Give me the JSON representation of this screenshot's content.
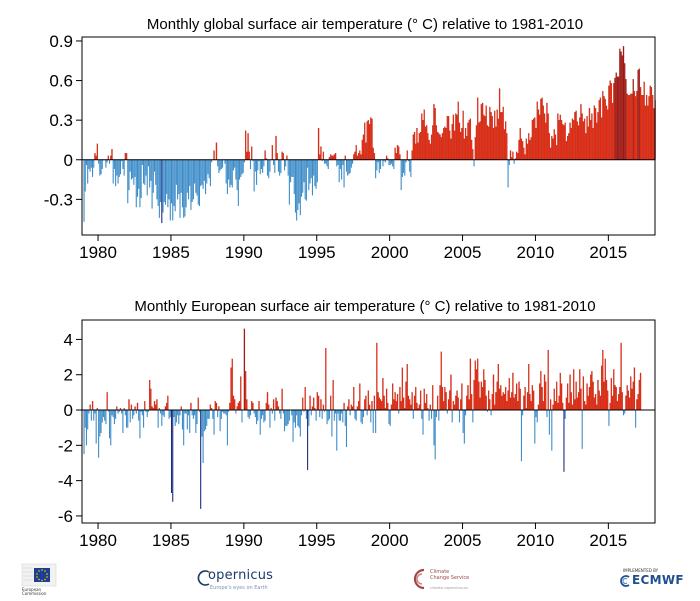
{
  "chart_data": [
    {
      "type": "bar",
      "title": "Monthly  global surface air temperature (° C) relative to 1981-2010",
      "xlabel": "",
      "ylabel": "",
      "xlim": [
        1978.9,
        2018.2
      ],
      "ylim": [
        -0.57,
        0.93
      ],
      "y_ticks": [
        0.9,
        0.6,
        0.3,
        0,
        -0.3
      ],
      "y_tick_labels": [
        "0.9",
        "0.6",
        "0.3",
        "0",
        "-0.3"
      ],
      "x_ticks": [
        1980,
        1985,
        1990,
        1995,
        2000,
        2005,
        2010,
        2015
      ],
      "x_tick_labels": [
        "1980",
        "1985",
        "1990",
        "1995",
        "2000",
        "2005",
        "2010",
        "2015"
      ],
      "grid": false,
      "legend": "none",
      "colors": {
        "positive": "#ee2a0c",
        "negative": "#3c8cc8",
        "extreme_negative": "#1b2d80",
        "extreme_positive": "#a51812"
      },
      "series": [
        {
          "start": "1979-01",
          "frequency": "monthly",
          "x_first_month": 1979.04,
          "values": [
            -0.47,
            -0.24,
            -0.04,
            -0.18,
            -0.07,
            -0.09,
            -0.06,
            -0.13,
            -0.06,
            0.05,
            0.03,
            0.12,
            -0.03,
            -0.12,
            -0.11,
            -0.07,
            0.0,
            0.0,
            -0.06,
            -0.02,
            0.03,
            -0.03,
            0.03,
            0.08,
            -0.18,
            -0.07,
            -0.2,
            -0.12,
            -0.18,
            -0.13,
            -0.11,
            -0.01,
            -0.07,
            -0.12,
            0.05,
            0.05,
            -0.33,
            -0.23,
            -0.09,
            -0.15,
            -0.14,
            -0.19,
            -0.13,
            -0.36,
            -0.28,
            -0.22,
            -0.36,
            -0.29,
            -0.04,
            -0.18,
            -0.19,
            -0.12,
            -0.27,
            -0.05,
            -0.21,
            -0.16,
            -0.37,
            -0.25,
            -0.09,
            -0.19,
            -0.3,
            -0.35,
            -0.44,
            -0.32,
            -0.48,
            -0.4,
            -0.32,
            -0.34,
            -0.26,
            -0.36,
            -0.3,
            -0.46,
            -0.33,
            -0.46,
            -0.35,
            -0.39,
            -0.19,
            -0.3,
            -0.26,
            -0.44,
            -0.25,
            -0.36,
            -0.44,
            -0.43,
            -0.36,
            -0.25,
            -0.3,
            -0.2,
            -0.38,
            -0.32,
            -0.3,
            -0.18,
            -0.25,
            -0.27,
            -0.34,
            -0.35,
            -0.2,
            -0.19,
            -0.22,
            -0.16,
            -0.26,
            -0.18,
            -0.11,
            -0.14,
            -0.2,
            -0.02,
            0.0,
            0.07,
            0.0,
            0.13,
            -0.05,
            -0.1,
            -0.08,
            -0.07,
            -0.06,
            0.0,
            -0.03,
            -0.18,
            -0.26,
            -0.15,
            -0.21,
            -0.19,
            -0.21,
            -0.08,
            -0.06,
            -0.15,
            -0.23,
            -0.35,
            -0.15,
            -0.13,
            -0.11,
            -0.1,
            -0.02,
            0.22,
            0.06,
            0.2,
            0.06,
            -0.07,
            0.1,
            -0.01,
            -0.24,
            -0.09,
            -0.19,
            -0.08,
            -0.01,
            -0.11,
            -0.07,
            -0.1,
            -0.05,
            0.07,
            0.01,
            -0.12,
            -0.14,
            -0.09,
            0.0,
            0.11,
            -0.04,
            -0.1,
            0.18,
            0.05,
            -0.09,
            -0.12,
            -0.1,
            0.06,
            0.05,
            -0.08,
            -0.05,
            0.03,
            -0.12,
            -0.34,
            -0.17,
            -0.13,
            -0.13,
            -0.26,
            -0.4,
            -0.46,
            -0.38,
            -0.33,
            -0.42,
            -0.28,
            -0.25,
            -0.17,
            -0.3,
            -0.31,
            -0.06,
            -0.23,
            -0.18,
            -0.14,
            -0.27,
            -0.12,
            -0.2,
            -0.22,
            -0.17,
            0.24,
            0.04,
            0.1,
            -0.01,
            0.06,
            -0.03,
            -0.03,
            -0.05,
            -0.07,
            0.02,
            0.04,
            0.03,
            0.03,
            0.04,
            0.05,
            -0.05,
            -0.04,
            -0.17,
            -0.07,
            -0.15,
            -0.04,
            -0.21,
            0.03,
            -0.09,
            -0.12,
            -0.11,
            -0.1,
            -0.06,
            -0.03,
            0.04,
            0.06,
            0.11,
            0.03,
            0.05,
            0.07,
            0.04,
            0.15,
            0.19,
            0.28,
            0.13,
            0.29,
            0.3,
            0.27,
            0.32,
            0.31,
            0.09,
            0.05,
            -0.14,
            -0.08,
            -0.02,
            -0.1,
            -0.07,
            0.0,
            -0.05,
            -0.01,
            -0.02,
            0.03,
            0.01,
            -0.04,
            -0.04,
            -0.03,
            -0.05,
            -0.07,
            0.09,
            0.05,
            0.11,
            0.1,
            0.04,
            -0.23,
            -0.13,
            -0.1,
            -0.12,
            -0.02,
            0.07,
            -0.01,
            -0.09,
            -0.13,
            0.07,
            0.19,
            0.21,
            0.12,
            0.24,
            0.13,
            0.2,
            0.21,
            0.35,
            0.3,
            0.38,
            0.25,
            0.26,
            0.2,
            0.15,
            0.12,
            0.19,
            0.26,
            0.42,
            0.39,
            0.26,
            0.21,
            0.2,
            0.19,
            0.17,
            0.2,
            0.24,
            0.25,
            0.24,
            0.33,
            0.33,
            0.22,
            0.16,
            0.27,
            0.34,
            0.22,
            0.35,
            0.34,
            0.44,
            0.28,
            0.21,
            0.24,
            0.37,
            0.16,
            0.24,
            0.18,
            0.28,
            0.3,
            0.31,
            0.15,
            0.08,
            -0.05,
            0.17,
            0.26,
            0.47,
            0.28,
            0.29,
            0.42,
            0.43,
            0.34,
            0.33,
            0.41,
            0.26,
            0.25,
            0.4,
            0.36,
            0.33,
            0.24,
            0.37,
            0.25,
            0.38,
            0.31,
            0.54,
            0.36,
            0.36,
            0.4,
            0.23,
            0.29,
            0.2,
            -0.21,
            -0.04,
            0.07,
            0.02,
            0.06,
            -0.03,
            0.01,
            0.06,
            0.05,
            0.15,
            0.24,
            0.16,
            0.14,
            0.09,
            0.04,
            0.16,
            0.12,
            0.2,
            0.15,
            0.17,
            0.3,
            0.31,
            0.32,
            0.24,
            0.44,
            0.38,
            0.34,
            0.46,
            0.47,
            0.41,
            0.35,
            0.28,
            0.43,
            0.35,
            0.2,
            0.09,
            0.18,
            0.16,
            0.23,
            0.19,
            0.11,
            0.35,
            0.3,
            0.34,
            0.3,
            0.27,
            0.26,
            0.28,
            0.14,
            0.18,
            0.2,
            0.28,
            0.24,
            0.31,
            0.3,
            0.36,
            0.37,
            0.29,
            0.26,
            0.32,
            0.42,
            0.35,
            0.29,
            0.31,
            0.2,
            0.33,
            0.25,
            0.39,
            0.3,
            0.35,
            0.24,
            0.41,
            0.39,
            0.28,
            0.36,
            0.45,
            0.47,
            0.32,
            0.52,
            0.48,
            0.46,
            0.41,
            0.38,
            0.56,
            0.6,
            0.58,
            0.43,
            0.58,
            0.62,
            0.66,
            0.63,
            0.63,
            0.84,
            0.82,
            0.79,
            0.86,
            0.73,
            0.61,
            0.5,
            0.49,
            0.49,
            0.5,
            0.5,
            0.61,
            0.52,
            0.48,
            0.52,
            0.68,
            0.69,
            0.55,
            0.49,
            0.49,
            0.59,
            0.41,
            0.49,
            0.41,
            0.48,
            0.56,
            0.55,
            0.49,
            0.39,
            0.45
          ]
        }
      ]
    },
    {
      "type": "bar",
      "title": "Monthly  European surface air temperature (° C) relative to 1981-2010",
      "xlabel": "",
      "ylabel": "",
      "xlim": [
        1978.9,
        2018.2
      ],
      "ylim": [
        -6.4,
        5.1
      ],
      "y_ticks": [
        4,
        2,
        0,
        -2,
        -4,
        -6
      ],
      "y_tick_labels": [
        "4",
        "2",
        "0",
        "-2",
        "-4",
        "-6"
      ],
      "x_ticks": [
        1980,
        1985,
        1990,
        1995,
        2000,
        2005,
        2010,
        2015
      ],
      "x_tick_labels": [
        "1980",
        "1985",
        "1990",
        "1995",
        "2000",
        "2005",
        "2010",
        "2015"
      ],
      "grid": false,
      "legend": "none",
      "colors": {
        "positive": "#ee2a0c",
        "negative": "#3c8cc8",
        "extreme_negative": "#1b2d80",
        "extreme_positive": "#a51812"
      },
      "series": [
        {
          "start": "1979-01",
          "frequency": "monthly",
          "x_first_month": 1979.04,
          "values": [
            -2.5,
            -1.0,
            -2.0,
            -1.1,
            -0.2,
            0.3,
            -0.6,
            0.5,
            -0.6,
            -0.2,
            -1.9,
            0.1,
            -2.7,
            -1.5,
            -1.3,
            -0.7,
            -0.4,
            -0.6,
            -0.8,
            1.0,
            -0.1,
            -1.6,
            -2.0,
            -0.3,
            -0.4,
            -0.8,
            -0.5,
            0.2,
            -0.2,
            -0.1,
            0.1,
            -0.2,
            -1.3,
            0.1,
            -0.3,
            -1.0,
            -1.0,
            0.6,
            -0.7,
            0.3,
            -0.5,
            -0.3,
            0.2,
            -0.2,
            0.4,
            -0.6,
            -1.6,
            -0.1,
            -0.3,
            -1.0,
            0.5,
            -0.1,
            -0.4,
            -0.1,
            1.7,
            1.2,
            0.2,
            0.1,
            0.5,
            0.3,
            0.6,
            -1.0,
            0.1,
            -0.2,
            -0.9,
            -0.3,
            -0.4,
            0.2,
            0.4,
            0.8,
            -0.5,
            -0.4,
            -4.7,
            -5.2,
            -0.4,
            -0.9,
            -0.7,
            -0.3,
            -0.8,
            -0.3,
            0.2,
            -1.1,
            -2.0,
            -0.2,
            -0.2,
            -1.1,
            -0.3,
            -1.3,
            0.4,
            -0.3,
            -0.5,
            -0.3,
            -1.3,
            -0.8,
            0.7,
            -0.1,
            -5.6,
            -1.5,
            -3.0,
            -1.2,
            -1.1,
            -0.9,
            -0.5,
            -0.5,
            0.3,
            0.1,
            -0.5,
            -1.4,
            0.5,
            0.4,
            -0.4,
            0.2,
            -1.2,
            -0.5,
            -0.1,
            -0.2,
            -0.2,
            -0.3,
            -2.0,
            -0.1,
            0.4,
            2.4,
            2.9,
            0.8,
            0.6,
            -0.2,
            0.2,
            0.4,
            0.5,
            1.9,
            -0.7,
            0.0,
            4.6,
            2.2,
            0.6,
            -0.4,
            -0.5,
            -0.3,
            0.5,
            0.4,
            -0.2,
            -0.4,
            -0.8,
            -0.6,
            0.5,
            -1.4,
            -0.5,
            -0.3,
            -0.7,
            -0.6,
            0.4,
            1.0,
            0.3,
            -1.0,
            0.1,
            -0.2,
            0.6,
            -0.6,
            0.7,
            0.5,
            0.2,
            -0.2,
            -0.5,
            1.2,
            -0.2,
            -1.2,
            -0.9,
            -0.9,
            -0.8,
            -0.6,
            0.0,
            -0.3,
            -1.8,
            -0.7,
            -1.0,
            -0.3,
            -0.9,
            -1.0,
            -1.5,
            -0.3,
            0.7,
            -0.1,
            1.3,
            -0.5,
            -3.4,
            -0.9,
            0.8,
            -0.3,
            0.2,
            0.7,
            0.1,
            -0.6,
            1.0,
            0.8,
            -0.4,
            0.6,
            -0.5,
            0.3,
            -0.1,
            3.5,
            -0.8,
            -0.6,
            -0.5,
            0.8,
            -1.5,
            1.7,
            -0.6,
            -0.2,
            -2.3,
            -0.2,
            -0.6,
            -0.6,
            -0.2,
            -0.7,
            0.4,
            -0.9,
            -2.1,
            0.2,
            0.6,
            -0.3,
            0.3,
            0.2,
            1.3,
            -0.5,
            -0.6,
            0.2,
            0.5,
            1.5,
            -0.7,
            -0.8,
            -0.4,
            0.6,
            0.8,
            -0.3,
            1.1,
            0.3,
            -0.7,
            0.5,
            -1.3,
            0.8,
            -1.3,
            3.8,
            1.0,
            0.7,
            0.6,
            0.5,
            1.8,
            0.8,
            0.1,
            1.2,
            0.4,
            -0.8,
            -0.9,
            0.3,
            1.5,
            0.6,
            1.0,
            0.5,
            0.9,
            -0.2,
            1.3,
            0.5,
            2.4,
            0.7,
            0.1,
            1.6,
            2.6,
            0.8,
            0.6,
            0.3,
            1.0,
            -0.5,
            0.8,
            1.3,
            0.4,
            0.1,
            0.3,
            1.1,
            -0.5,
            -1.4,
            1.2,
            0.4,
            0.9,
            0.1,
            -0.6,
            0.3,
            -0.5,
            1.4,
            -2.0,
            -2.8,
            -0.4,
            0.8,
            -0.6,
            1.4,
            3.3,
            1.3,
            0.5,
            1.3,
            1.0,
            -0.2,
            0.6,
            1.1,
            2.0,
            -0.7,
            0.5,
            0.3,
            0.8,
            1.1,
            0.7,
            -0.7,
            0.6,
            1.5,
            -1.3,
            -1.9,
            -0.3,
            0.8,
            1.4,
            0.6,
            2.9,
            0.9,
            -0.7,
            1.7,
            2.8,
            2.3,
            2.9,
            1.6,
            0.7,
            1.6,
            1.3,
            2.3,
            1.7,
            0.8,
            -0.1,
            1.1,
            0.6,
            -0.3,
            0.9,
            2.0,
            0.3,
            1.0,
            1.6,
            2.6,
            1.2,
            1.4,
            0.8,
            1.0,
            0.9,
            1.3,
            0.5,
            1.1,
            1.8,
            0.7,
            1.0,
            2.1,
            0.7,
            0.9,
            1.5,
            0.5,
            1.6,
            1.2,
            -2.9,
            -0.3,
            0.8,
            1.3,
            0.1,
            1.0,
            2.6,
            0.9,
            0.5,
            1.4,
            1.1,
            -1.9,
            -0.4,
            -0.7,
            0.3,
            1.5,
            2.2,
            1.3,
            0.5,
            2.0,
            1.6,
            -0.4,
            3.4,
            -1.4,
            0.6,
            -2.3,
            0.3,
            1.2,
            0.5,
            1.6,
            0.4,
            0.8,
            2.1,
            1.5,
            0.4,
            -3.5,
            -0.5,
            0.7,
            1.5,
            0.4,
            2.0,
            1.0,
            0.3,
            2.3,
            0.6,
            1.6,
            0.7,
            1.0,
            2.3,
            1.2,
            -2.2,
            1.9,
            0.5,
            0.3,
            1.5,
            0.8,
            1.3,
            2.0,
            2.2,
            1.6,
            0.7,
            0.9,
            0.3,
            1.7,
            1.1,
            0.8,
            2.5,
            3.4,
            1.6,
            2.9,
            1.7,
            1.1,
            -0.9,
            0.4,
            1.8,
            0.8,
            2.3,
            1.4,
            1.3,
            0.5,
            0.9,
            1.3,
            3.8,
            1.0,
            -0.3,
            -0.2,
            0.8,
            1.4,
            1.1,
            0.7,
            1.9,
            1.2,
            1.6,
            2.4,
            -1.0,
            0.6,
            0.9,
            1.7,
            2.1
          ]
        }
      ]
    }
  ],
  "footer": {
    "ec_logo_text": "European\nCommission",
    "copernicus_name": "opernicus",
    "copernicus_tagline": "Europe's eyes on Earth",
    "c3s_name": "Climate\nChange Service",
    "c3s_sub": "climate.copernicus.eu",
    "ecmwf_small": "IMPLEMENTED BY",
    "ecmwf_name": "ECMWF"
  }
}
